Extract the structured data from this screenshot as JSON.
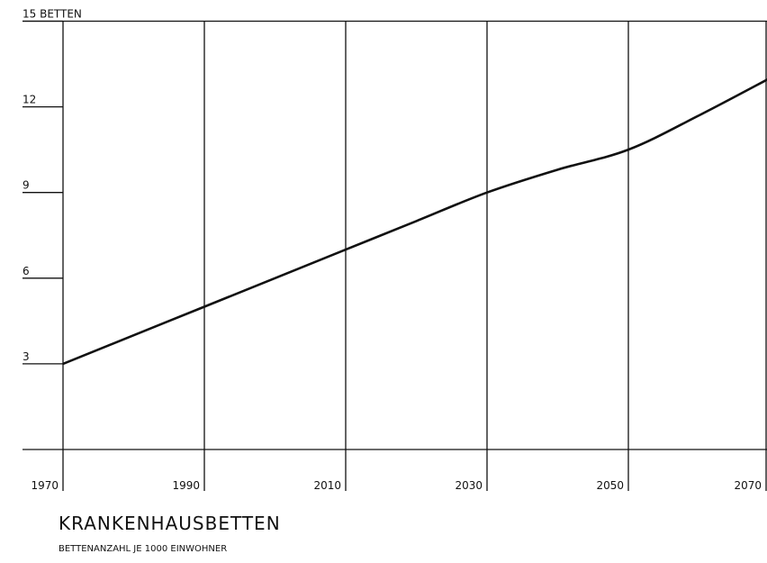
{
  "chart_data": {
    "type": "line",
    "title": "KRANKENHAUSBETTEN",
    "subtitle": "BETTENANZAHL JE 1000 EINWOHNER",
    "x": [
      1970,
      1980,
      1990,
      2000,
      2010,
      2020,
      2030,
      2040,
      2050,
      2060,
      2070
    ],
    "series": [
      {
        "name": "Krankenhausbetten",
        "color": "#111111",
        "values": [
          3,
          4,
          5,
          6,
          7,
          8,
          9,
          9.8,
          10.5,
          11.7,
          13
        ]
      }
    ],
    "xlim": [
      1970,
      2070
    ],
    "xticks": [
      1970,
      1990,
      2010,
      2030,
      2050,
      2070
    ],
    "ylim": [
      0,
      15
    ],
    "yticks": [
      3,
      6,
      9,
      12,
      {
        "value": 15,
        "label": "15 BETTEN"
      }
    ],
    "grid": true
  }
}
